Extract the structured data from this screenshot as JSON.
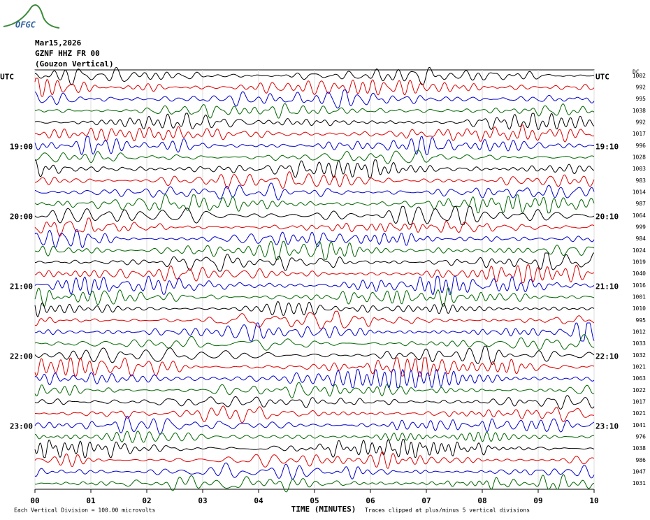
{
  "logo": "OFGC",
  "header": {
    "date": "Mar15,2026",
    "station": "GZNF HHZ FR 00",
    "site": "(Gouzon Vertical)"
  },
  "left_labels": [
    "UTC",
    "19:00",
    "20:00",
    "21:00",
    "22:00",
    "23:00"
  ],
  "right_labels": [
    "UTC",
    "19:10",
    "20:10",
    "21:10",
    "22:10",
    "23:10"
  ],
  "dc_label": "DC",
  "dc_values": [
    "1002",
    "992",
    "995",
    "1038",
    "992",
    "1017",
    "996",
    "1028",
    "1003",
    "983",
    "1014",
    "987",
    "1064",
    "999",
    "984",
    "1024",
    "1019",
    "1040",
    "1016",
    "1001",
    "1010",
    "995",
    "1012",
    "1033",
    "1032",
    "1021",
    "1063",
    "1022",
    "1017",
    "1021",
    "1041",
    "976",
    "1038",
    "986",
    "1047",
    "1031"
  ],
  "x_ticks": [
    "00",
    "01",
    "02",
    "03",
    "04",
    "05",
    "06",
    "07",
    "08",
    "09",
    "10"
  ],
  "x_axis_label": "TIME (MINUTES)",
  "footer": {
    "left": "Each Vertical Division =  100.00 microvolts",
    "right": "Traces clipped at plus/minus 5 vertical divisions"
  }
}
